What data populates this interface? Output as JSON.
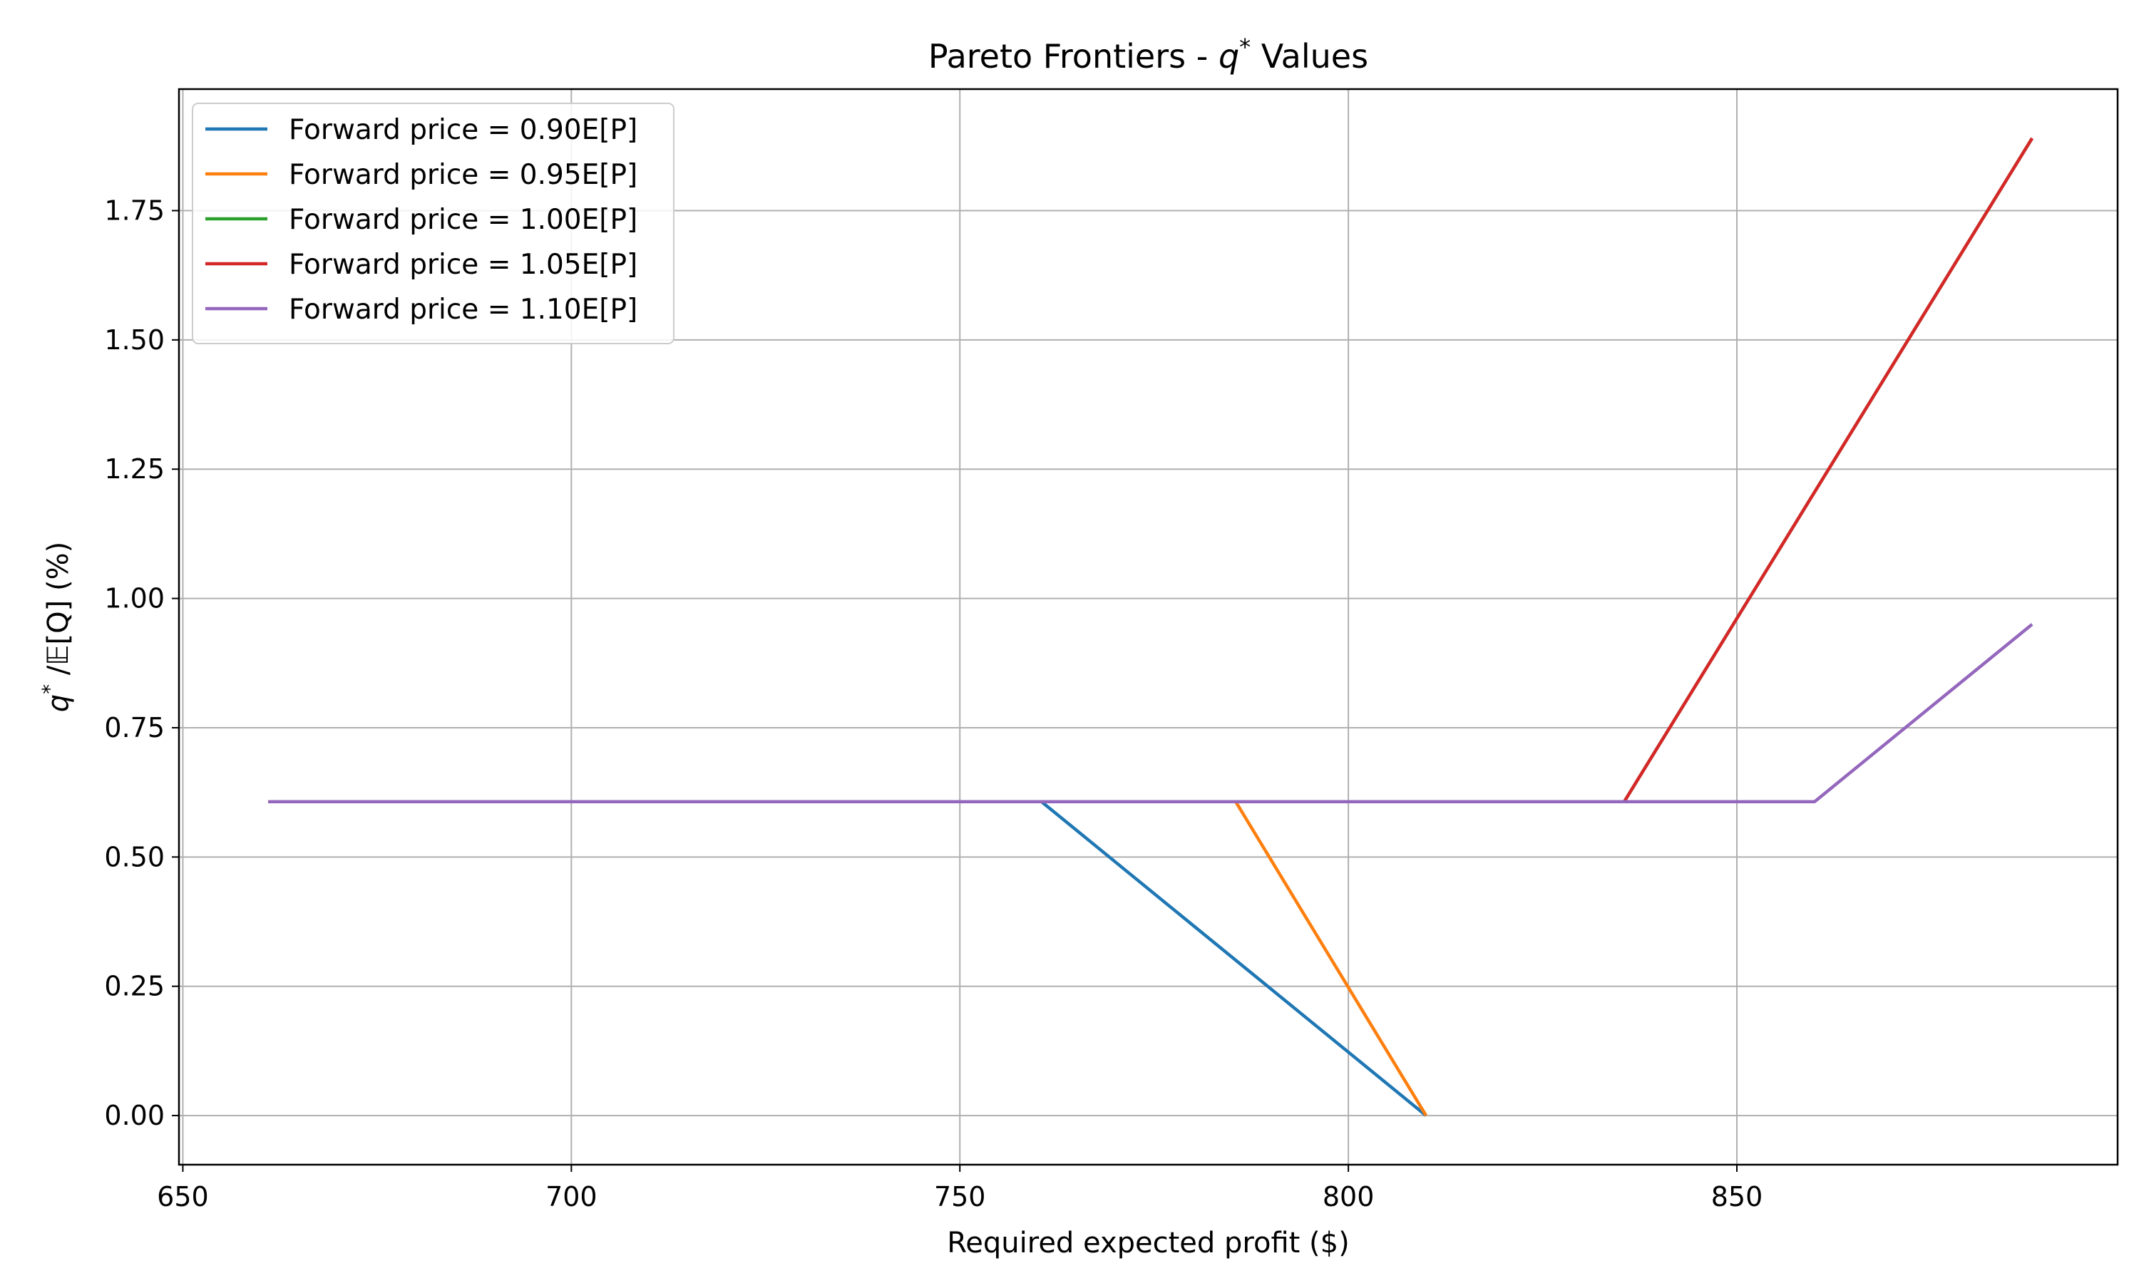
{
  "chart_data": {
    "type": "line",
    "title": "Pareto Frontiers - q* Values",
    "title_parts": {
      "prefix": "Pareto Frontiers - ",
      "symbol": "q",
      "superscript": "*",
      "suffix": " Values"
    },
    "xlabel": "Required expected profit ($)",
    "ylabel": "q* /𝔼[Q] (%)",
    "ylabel_parts": {
      "symbol": "q",
      "superscript": "*",
      "suffix": " /𝔼[Q] (%)"
    },
    "xlim": [
      649.5,
      899
    ],
    "ylim": [
      -0.095,
      1.985
    ],
    "xticks": [
      650,
      700,
      750,
      800,
      850
    ],
    "xtick_labels": [
      "650",
      "700",
      "750",
      "800",
      "850"
    ],
    "yticks": [
      0,
      0.25,
      0.5,
      0.75,
      1.0,
      1.25,
      1.5,
      1.75
    ],
    "ytick_labels": [
      "0.00",
      "0.25",
      "0.50",
      "0.75",
      "1.00",
      "1.25",
      "1.50",
      "1.75"
    ],
    "grid": true,
    "legend_position": "upper-left",
    "series": [
      {
        "name": "Forward price = 0.90E[P]",
        "color": "#1f77b4",
        "points": [
          [
            661,
            0.607
          ],
          [
            760.5,
            0.607
          ],
          [
            810,
            0.0
          ]
        ]
      },
      {
        "name": "Forward price = 0.95E[P]",
        "color": "#ff7f0e",
        "points": [
          [
            661,
            0.607
          ],
          [
            785.5,
            0.607
          ],
          [
            810,
            0.0
          ]
        ]
      },
      {
        "name": "Forward price = 1.00E[P]",
        "color": "#2ca02c",
        "points": [
          [
            661,
            0.607
          ],
          [
            835.5,
            0.607
          ],
          [
            888,
            1.89
          ]
        ]
      },
      {
        "name": "Forward price = 1.05E[P]",
        "color": "#d62728",
        "points": [
          [
            661,
            0.607
          ],
          [
            835.5,
            0.607
          ],
          [
            888,
            1.89
          ]
        ]
      },
      {
        "name": "Forward price = 1.10E[P]",
        "color": "#9467bd",
        "points": [
          [
            661,
            0.607
          ],
          [
            860,
            0.607
          ],
          [
            888,
            0.95
          ]
        ]
      }
    ]
  }
}
